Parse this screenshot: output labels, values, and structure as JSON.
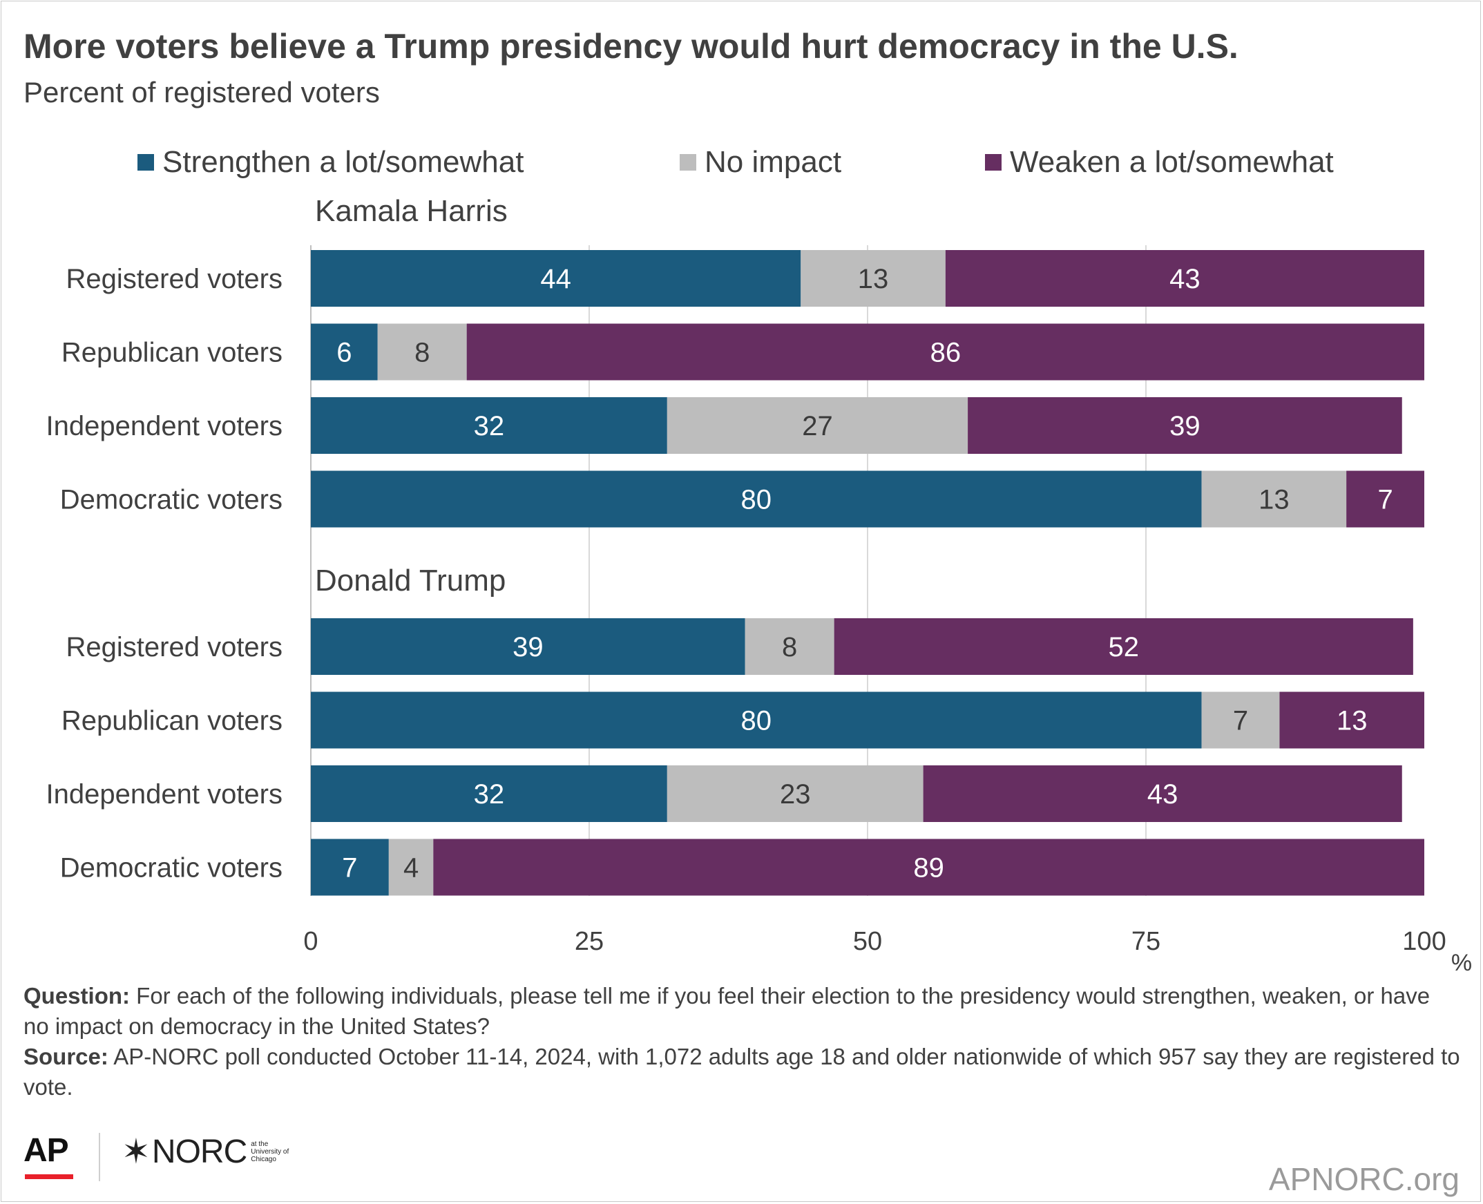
{
  "title": "More voters believe a Trump presidency would hurt democracy in the U.S.",
  "subtitle": "Percent of registered voters",
  "legend": [
    {
      "label": "Strengthen a lot/somewhat",
      "color": "#1b5b7e"
    },
    {
      "label": "No impact",
      "color": "#bdbdbd"
    },
    {
      "label": "Weaken a lot/somewhat",
      "color": "#662e61"
    }
  ],
  "footnote": {
    "question_label": "Question:",
    "question_text": " For each of the following individuals, please tell me if you feel their election to the presidency would strengthen, weaken, or have no impact on democracy in the United States?",
    "source_label": "Source:",
    "source_text": " AP-NORC poll conducted October 11-14, 2024, with 1,072 adults age 18 and older nationwide of which 957 say they are registered to vote."
  },
  "logos": {
    "ap": "AP",
    "norc": "NORC",
    "norc_sub": [
      "at the",
      "University of",
      "Chicago"
    ],
    "url": "APNORC.org"
  },
  "chart_data": {
    "type": "bar",
    "orientation": "horizontal",
    "stacked": true,
    "xlim": [
      0,
      100
    ],
    "xticks": [
      "0",
      "25",
      "50",
      "75",
      "100"
    ],
    "xunit": "%",
    "grid": true,
    "legend_position": "top",
    "series_names": [
      "Strengthen a lot/somewhat",
      "No impact",
      "Weaken a lot/somewhat"
    ],
    "groups": [
      {
        "name": "Kamala Harris",
        "categories": [
          "Registered voters",
          "Republican voters",
          "Independent voters",
          "Democratic voters"
        ],
        "values": [
          [
            44,
            13,
            43
          ],
          [
            6,
            8,
            86
          ],
          [
            32,
            27,
            39
          ],
          [
            80,
            13,
            7
          ]
        ]
      },
      {
        "name": "Donald Trump",
        "categories": [
          "Registered voters",
          "Republican voters",
          "Independent voters",
          "Democratic voters"
        ],
        "values": [
          [
            39,
            8,
            52
          ],
          [
            80,
            7,
            13
          ],
          [
            32,
            23,
            43
          ],
          [
            7,
            4,
            89
          ]
        ]
      }
    ]
  }
}
